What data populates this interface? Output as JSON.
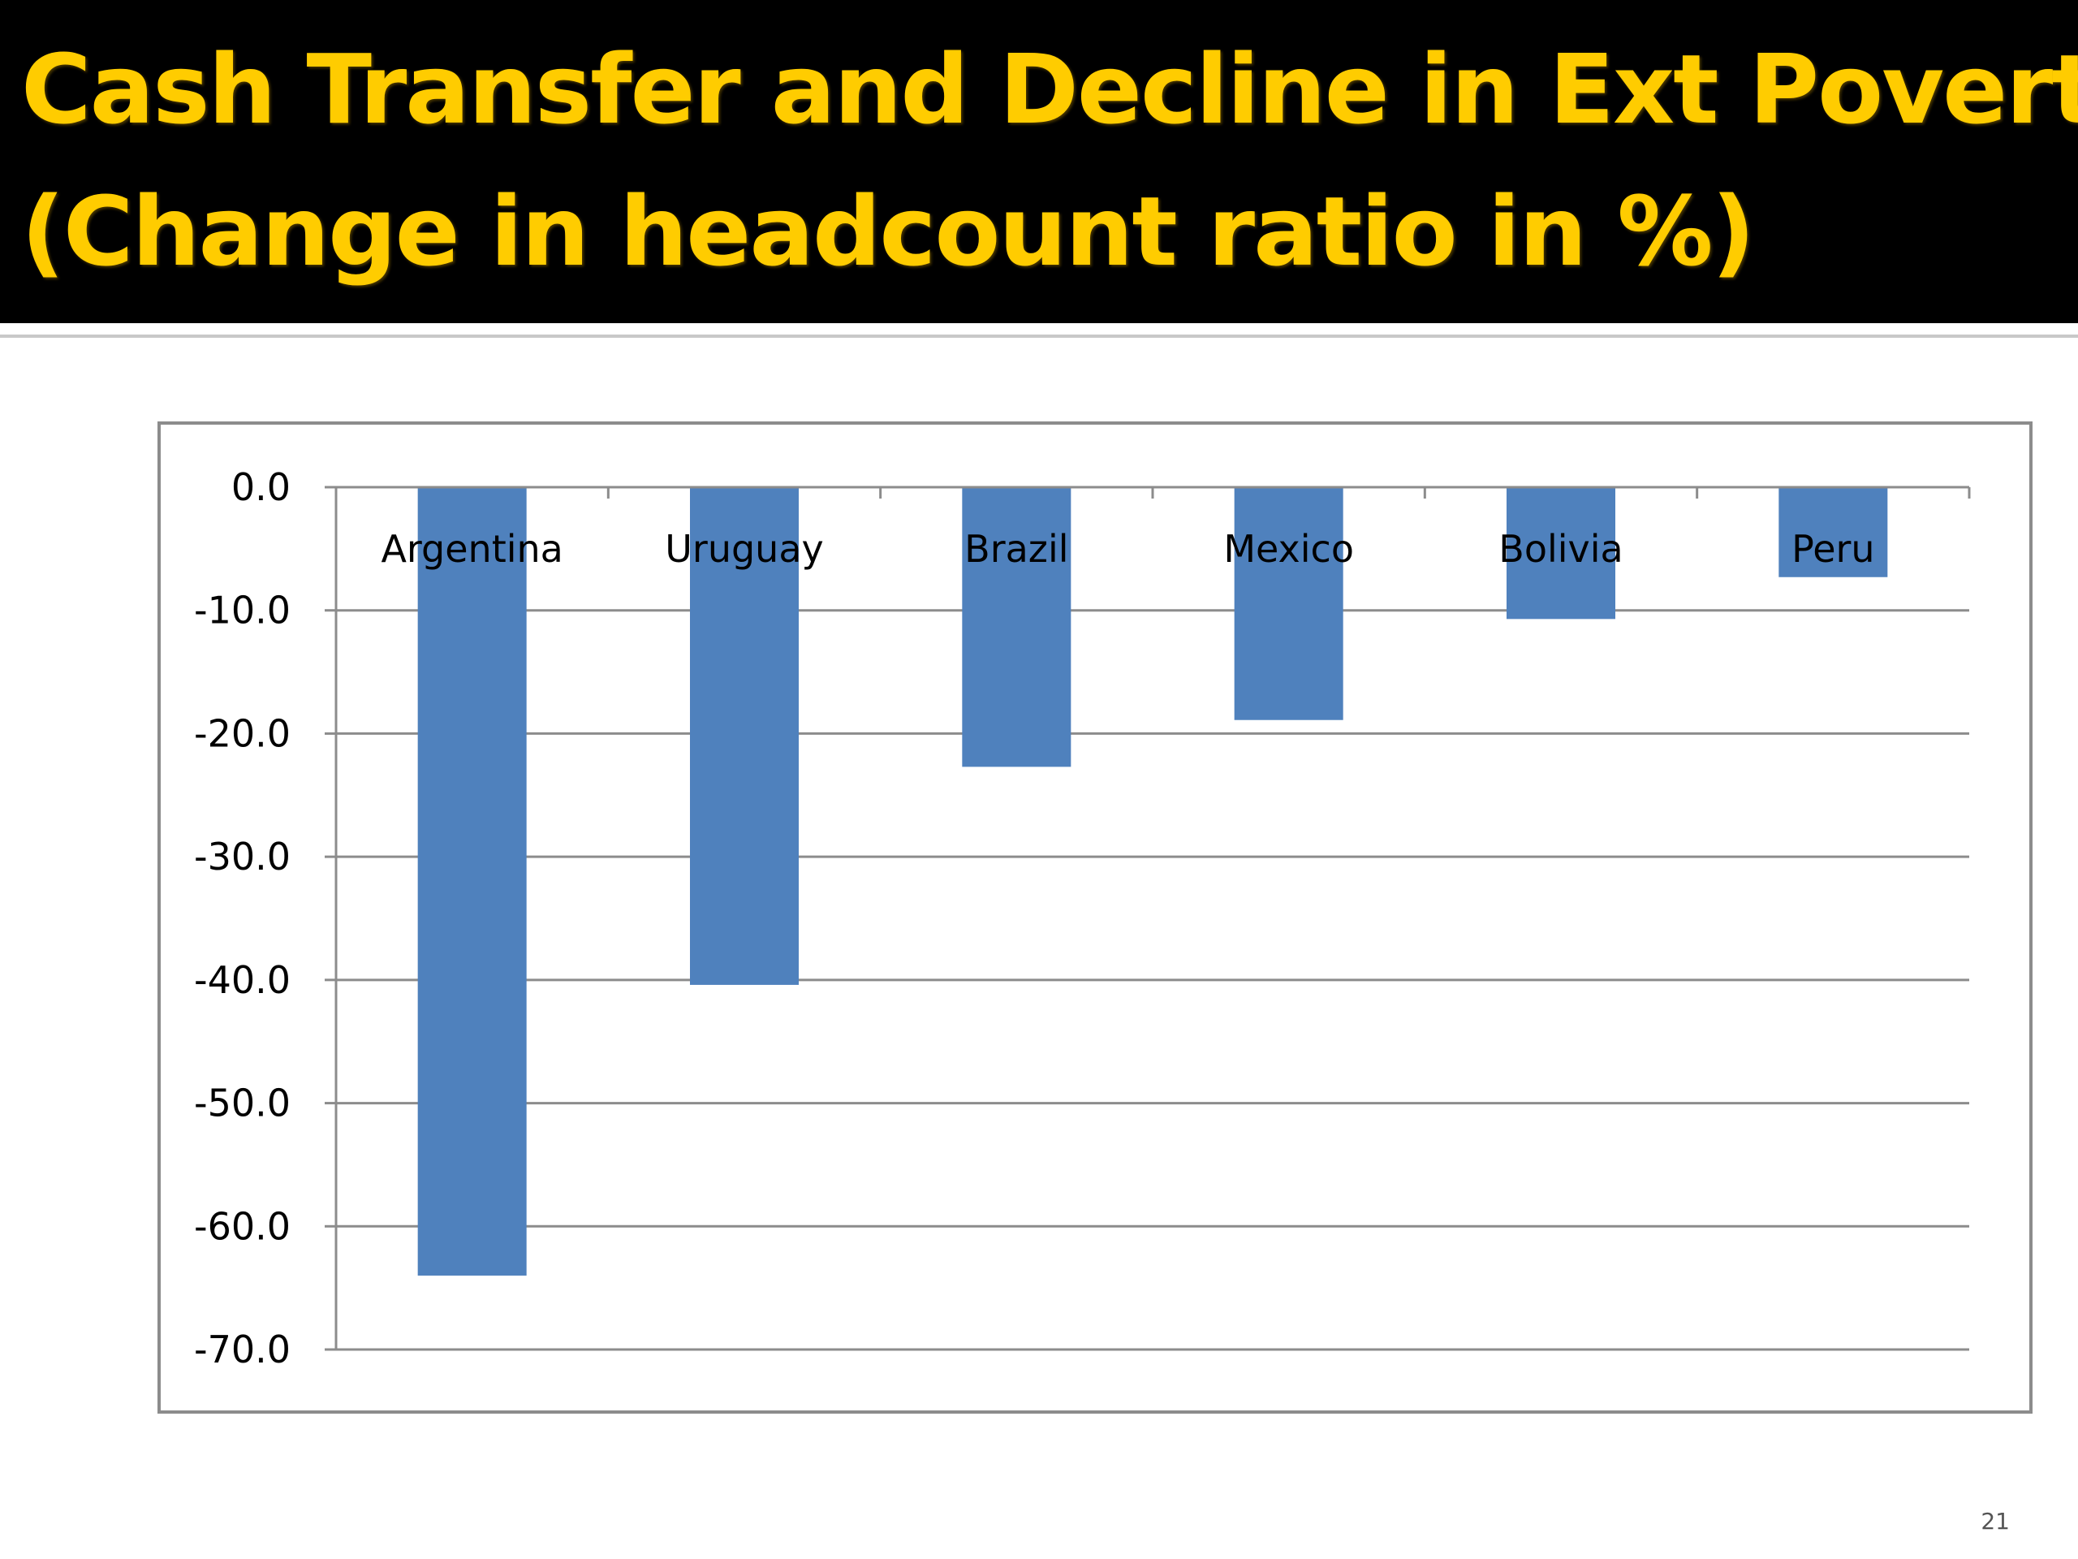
{
  "slide": {
    "title_line1": "Cash Transfer and Decline in Ext Poverty",
    "title_line2": "(Change in headcount ratio in %)",
    "page_number": "21",
    "title_color": "#FFCC00",
    "title_bar_color": "#000000"
  },
  "chart_data": {
    "type": "bar",
    "categories": [
      "Argentina",
      "Uruguay",
      "Brazil",
      "Mexico",
      "Bolivia",
      "Peru"
    ],
    "values": [
      -64.0,
      -40.4,
      -22.7,
      -18.9,
      -10.7,
      -7.3
    ],
    "ylim": [
      -70,
      0
    ],
    "yticks": [
      0,
      -10,
      -20,
      -30,
      -40,
      -50,
      -60,
      -70
    ],
    "ytick_labels": [
      "0.0",
      "-10.0",
      "-20.0",
      "-30.0",
      "-40.0",
      "-50.0",
      "-60.0",
      "-70.0"
    ],
    "title": "",
    "xlabel": "",
    "ylabel": "",
    "grid": true,
    "bar_color": "#4F81BD",
    "category_labels_position": "top"
  }
}
